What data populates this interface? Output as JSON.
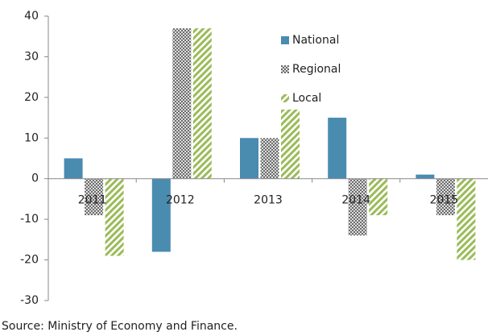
{
  "chart_data": {
    "type": "bar",
    "categories": [
      "2011",
      "2012",
      "2013",
      "2014",
      "2015"
    ],
    "series": [
      {
        "name": "National",
        "color": "#4a8bb0",
        "pattern": "solid",
        "values": [
          5,
          -18,
          10,
          15,
          1
        ]
      },
      {
        "name": "Regional",
        "color": "#555555",
        "pattern": "crosshatch",
        "values": [
          -9,
          37,
          10,
          -14,
          -9
        ]
      },
      {
        "name": "Local",
        "color": "#9bbb59",
        "pattern": "stripes",
        "values": [
          -19,
          37,
          17,
          -9,
          -20
        ]
      }
    ],
    "ylim": [
      -30,
      40
    ],
    "yticks": [
      -30,
      -20,
      -10,
      0,
      10,
      20,
      30,
      40
    ],
    "grid": false,
    "source": "Source: Ministry of Economy and Finance."
  }
}
